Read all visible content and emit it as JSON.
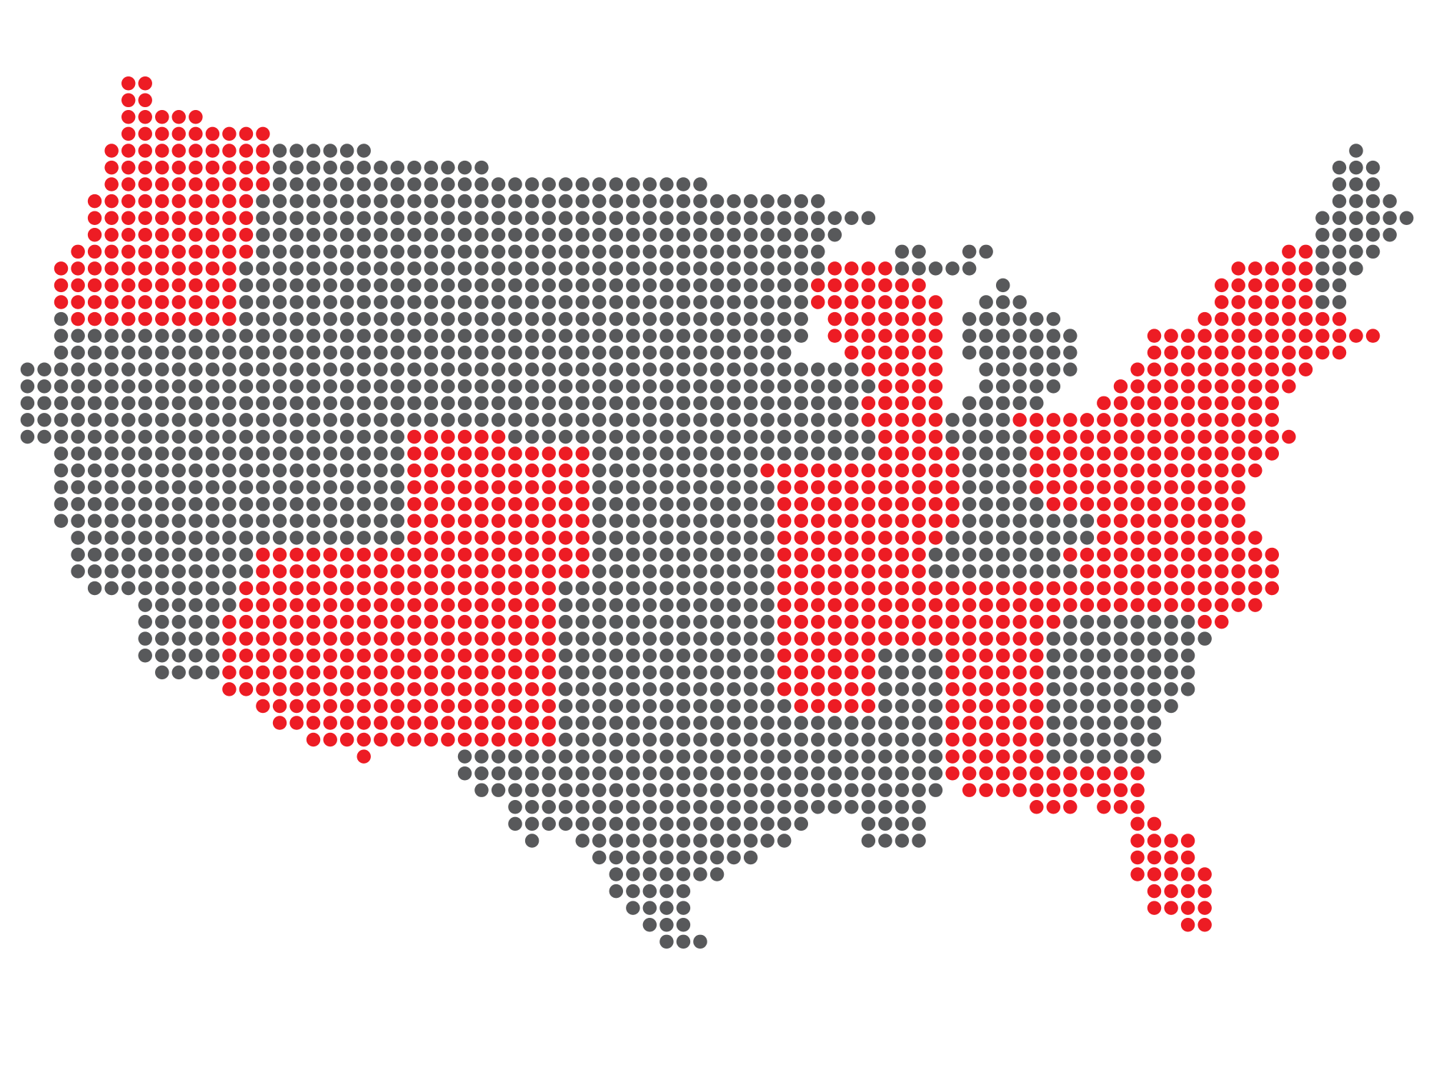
{
  "map": {
    "kind": "dot-grid map of the contiguous United States",
    "colors": {
      "highlighted": "#ed1c24",
      "other": "#58595b",
      "background": "#ffffff"
    }
  }
}
